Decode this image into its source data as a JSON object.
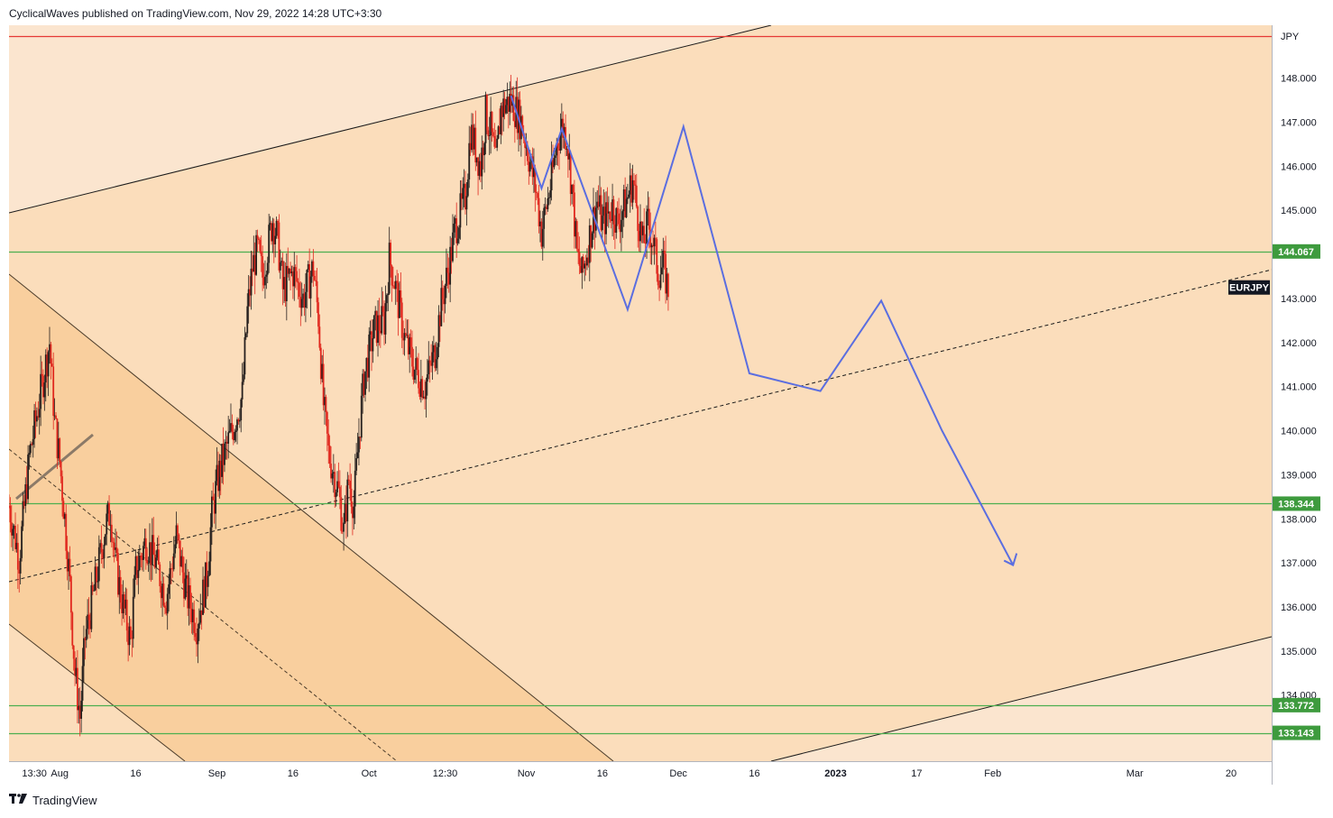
{
  "header": {
    "attribution": "CyclicalWaves published on TradingView.com, Nov 29, 2022 14:28 UTC+3:30"
  },
  "footer": {
    "brand": "TradingView",
    "logo_icon": "tradingview-logo-icon"
  },
  "colors": {
    "background": "#fbddbb",
    "zone_light": "#fbe5cf",
    "zone_dark": "#f9cf9e",
    "candle_up": "#26201e",
    "candle_down": "#e0281e",
    "support_line": "#4caf50",
    "resistance_line": "#e53935",
    "projection": "#5b6ee0",
    "channel_line": "#1a1a1a",
    "badge_green": "#3e9b3e",
    "badge_dark": "#131722"
  },
  "chart_data": {
    "type": "candlestick",
    "symbol": "EURJPY",
    "currency": "JPY",
    "y_axis": {
      "range": [
        132.5,
        149.2
      ],
      "ticks": [
        "134.000",
        "135.000",
        "136.000",
        "137.000",
        "138.000",
        "139.000",
        "140.000",
        "141.000",
        "142.000",
        "143.000",
        "145.000",
        "146.000",
        "147.000",
        "148.000"
      ],
      "tick_values": [
        134,
        135,
        136,
        137,
        138,
        139,
        140,
        141,
        142,
        143,
        145,
        146,
        147,
        148
      ]
    },
    "x_axis": {
      "range": [
        "2022-07-22",
        "2023-03-28"
      ],
      "ticks": [
        {
          "label": "13:30",
          "date": "2022-07-27",
          "bold": false
        },
        {
          "label": "Aug",
          "date": "2022-08-01",
          "bold": false
        },
        {
          "label": "16",
          "date": "2022-08-16",
          "bold": false
        },
        {
          "label": "Sep",
          "date": "2022-09-01",
          "bold": false
        },
        {
          "label": "16",
          "date": "2022-09-16",
          "bold": false
        },
        {
          "label": "Oct",
          "date": "2022-10-01",
          "bold": false
        },
        {
          "label": "12:30",
          "date": "2022-10-16",
          "bold": false
        },
        {
          "label": "Nov",
          "date": "2022-11-01",
          "bold": false
        },
        {
          "label": "16",
          "date": "2022-11-16",
          "bold": false
        },
        {
          "label": "Dec",
          "date": "2022-12-01",
          "bold": false
        },
        {
          "label": "16",
          "date": "2022-12-16",
          "bold": false
        },
        {
          "label": "2023",
          "date": "2023-01-01",
          "bold": true
        },
        {
          "label": "17",
          "date": "2023-01-17",
          "bold": false
        },
        {
          "label": "Feb",
          "date": "2023-02-01",
          "bold": false
        },
        {
          "label": "Mar",
          "date": "2023-03-01",
          "bold": false
        },
        {
          "label": "20",
          "date": "2023-03-20",
          "bold": false
        }
      ]
    },
    "horizontal_levels": [
      {
        "label": "144.067",
        "value": 144.067,
        "kind": "support"
      },
      {
        "label": "138.344",
        "value": 138.344,
        "kind": "support"
      },
      {
        "label": "133.772",
        "value": 133.772,
        "kind": "support"
      },
      {
        "label": "133.143",
        "value": 133.143,
        "kind": "support"
      },
      {
        "label": "",
        "value": 148.95,
        "kind": "resistance"
      }
    ],
    "symbol_badge": {
      "label": "EURJPY",
      "value": 143.25
    },
    "price_path": [
      [
        "2022-07-22",
        138.3
      ],
      [
        "2022-07-24",
        137.1
      ],
      [
        "2022-07-26",
        139.4
      ],
      [
        "2022-07-28",
        140.7
      ],
      [
        "2022-07-30",
        142.0
      ],
      [
        "2022-07-31",
        140.2
      ],
      [
        "2022-08-01",
        139.3
      ],
      [
        "2022-08-02",
        138.0
      ],
      [
        "2022-08-03",
        136.5
      ],
      [
        "2022-08-04",
        134.5
      ],
      [
        "2022-08-05",
        133.5
      ],
      [
        "2022-08-06",
        135.3
      ],
      [
        "2022-08-08",
        136.5
      ],
      [
        "2022-08-10",
        137.8
      ],
      [
        "2022-08-11",
        138.2
      ],
      [
        "2022-08-12",
        137.0
      ],
      [
        "2022-08-13",
        136.3
      ],
      [
        "2022-08-15",
        135.2
      ],
      [
        "2022-08-16",
        136.8
      ],
      [
        "2022-08-18",
        137.5
      ],
      [
        "2022-08-20",
        137.0
      ],
      [
        "2022-08-22",
        136.2
      ],
      [
        "2022-08-24",
        137.6
      ],
      [
        "2022-08-26",
        136.3
      ],
      [
        "2022-08-28",
        135.6
      ],
      [
        "2022-08-30",
        136.7
      ],
      [
        "2022-08-31",
        138.1
      ],
      [
        "2022-09-01",
        138.8
      ],
      [
        "2022-09-02",
        139.3
      ],
      [
        "2022-09-04",
        140.0
      ],
      [
        "2022-09-06",
        140.8
      ],
      [
        "2022-09-07",
        142.7
      ],
      [
        "2022-09-08",
        143.7
      ],
      [
        "2022-09-09",
        144.1
      ],
      [
        "2022-09-10",
        143.5
      ],
      [
        "2022-09-12",
        144.8
      ],
      [
        "2022-09-13",
        144.3
      ],
      [
        "2022-09-14",
        143.2
      ],
      [
        "2022-09-16",
        143.6
      ],
      [
        "2022-09-18",
        143.0
      ],
      [
        "2022-09-20",
        143.7
      ],
      [
        "2022-09-21",
        142.6
      ],
      [
        "2022-09-22",
        140.6
      ],
      [
        "2022-09-23",
        139.5
      ],
      [
        "2022-09-25",
        138.6
      ],
      [
        "2022-09-26",
        137.7
      ],
      [
        "2022-09-27",
        138.9
      ],
      [
        "2022-09-28",
        138.3
      ],
      [
        "2022-09-29",
        139.9
      ],
      [
        "2022-09-30",
        141.2
      ],
      [
        "2022-10-02",
        142.3
      ],
      [
        "2022-10-04",
        142.5
      ],
      [
        "2022-10-05",
        143.9
      ],
      [
        "2022-10-06",
        143.4
      ],
      [
        "2022-10-08",
        142.1
      ],
      [
        "2022-10-10",
        141.4
      ],
      [
        "2022-10-12",
        141.0
      ],
      [
        "2022-10-14",
        141.8
      ],
      [
        "2022-10-15",
        142.7
      ],
      [
        "2022-10-17",
        143.9
      ],
      [
        "2022-10-18",
        144.6
      ],
      [
        "2022-10-20",
        145.3
      ],
      [
        "2022-10-21",
        146.8
      ],
      [
        "2022-10-23",
        146.0
      ],
      [
        "2022-10-24",
        147.2
      ],
      [
        "2022-10-25",
        146.8
      ],
      [
        "2022-10-26",
        146.0
      ],
      [
        "2022-10-27",
        147.3
      ],
      [
        "2022-10-29",
        147.5
      ],
      [
        "2022-10-31",
        147.0
      ],
      [
        "2022-11-01",
        146.5
      ],
      [
        "2022-11-03",
        145.4
      ],
      [
        "2022-11-04",
        144.5
      ],
      [
        "2022-11-06",
        145.7
      ],
      [
        "2022-11-07",
        146.5
      ],
      [
        "2022-11-08",
        146.9
      ],
      [
        "2022-11-09",
        146.7
      ],
      [
        "2022-11-10",
        145.5
      ],
      [
        "2022-11-11",
        144.0
      ],
      [
        "2022-11-12",
        143.5
      ],
      [
        "2022-11-14",
        144.7
      ],
      [
        "2022-11-15",
        145.2
      ],
      [
        "2022-11-16",
        144.7
      ],
      [
        "2022-11-18",
        145.1
      ],
      [
        "2022-11-19",
        144.7
      ],
      [
        "2022-11-21",
        145.3
      ],
      [
        "2022-11-22",
        145.7
      ],
      [
        "2022-11-23",
        144.9
      ],
      [
        "2022-11-24",
        144.2
      ],
      [
        "2022-11-25",
        144.7
      ],
      [
        "2022-11-26",
        144.3
      ],
      [
        "2022-11-27",
        143.6
      ],
      [
        "2022-11-28",
        143.7
      ],
      [
        "2022-11-29",
        143.2
      ]
    ],
    "projection_path": [
      [
        "2022-10-29",
        147.6
      ],
      [
        "2022-11-04",
        145.5
      ],
      [
        "2022-11-08",
        146.85
      ],
      [
        "2022-11-21",
        142.75
      ],
      [
        "2022-12-02",
        146.9
      ],
      [
        "2022-12-15",
        141.3
      ],
      [
        "2022-12-29",
        140.9
      ],
      [
        "2023-01-10",
        142.95
      ],
      [
        "2023-01-22",
        140.0
      ],
      [
        "2023-02-05",
        136.95
      ]
    ]
  }
}
